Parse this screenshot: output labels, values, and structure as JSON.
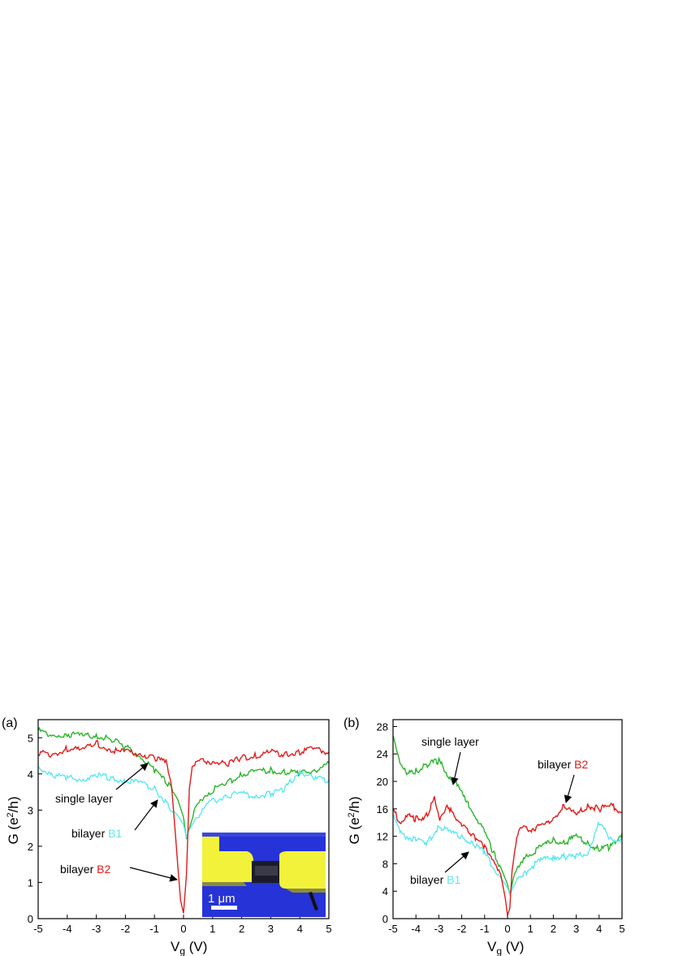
{
  "colors": {
    "single_layer": "#2bb52b",
    "bilayer_B1": "#5fe6f0",
    "bilayer_B2": "#e01b1b",
    "inset_bg": "#2633d6",
    "inset_contact": "#f2f23a"
  },
  "chart_data": [
    {
      "panel_label": "(a)",
      "type": "line",
      "xlabel_main": "V",
      "xlabel_sub": "g",
      "xlabel_unit": " (V)",
      "ylabel_main": "G (e",
      "ylabel_sup": "2",
      "ylabel_end": "/h)",
      "xlim": [
        -5,
        5
      ],
      "ylim": [
        0,
        5.5
      ],
      "xticks": [
        "-5",
        "-4",
        "-3",
        "-2",
        "-1",
        "0",
        "1",
        "2",
        "3",
        "4",
        "5"
      ],
      "yticks": [
        "0",
        "1",
        "2",
        "3",
        "4",
        "5"
      ],
      "series": [
        {
          "key": "single_layer",
          "x": [
            -5,
            -4.5,
            -4,
            -3.5,
            -3,
            -2.5,
            -2,
            -1.5,
            -1,
            -0.5,
            -0.2,
            0,
            0.1,
            0.2,
            0.4,
            0.7,
            1,
            1.5,
            2,
            2.5,
            3,
            3.5,
            4,
            4.5,
            5
          ],
          "y": [
            5.2,
            5.05,
            5.1,
            5.05,
            5.05,
            4.95,
            4.75,
            4.5,
            4.1,
            3.7,
            3.3,
            2.8,
            2.2,
            2.5,
            3.0,
            3.4,
            3.55,
            3.75,
            4.0,
            4.05,
            4.1,
            4.05,
            4.0,
            4.1,
            4.3
          ]
        },
        {
          "key": "bilayer_B1",
          "x": [
            -5,
            -4.5,
            -4,
            -3.5,
            -3,
            -2.5,
            -2,
            -1.5,
            -1,
            -0.5,
            -0.2,
            0,
            0.1,
            0.2,
            0.4,
            0.7,
            1,
            1.5,
            2,
            2.5,
            3,
            3.5,
            4,
            4.5,
            5
          ],
          "y": [
            4.2,
            3.95,
            3.9,
            3.85,
            3.95,
            3.9,
            3.8,
            3.75,
            3.6,
            3.1,
            2.85,
            2.6,
            2.25,
            2.45,
            2.75,
            3.05,
            3.25,
            3.4,
            3.45,
            3.4,
            3.45,
            3.6,
            4.1,
            3.85,
            3.85
          ]
        },
        {
          "key": "bilayer_B2",
          "x": [
            -5,
            -4.5,
            -4,
            -3.5,
            -3,
            -2.5,
            -2,
            -1.5,
            -1,
            -0.6,
            -0.4,
            -0.2,
            -0.1,
            0,
            0.1,
            0.2,
            0.3,
            0.5,
            1,
            1.5,
            2,
            2.5,
            3,
            3.5,
            4,
            4.5,
            5
          ],
          "y": [
            4.6,
            4.5,
            4.7,
            4.65,
            4.85,
            4.65,
            4.6,
            4.55,
            4.45,
            4.3,
            3.6,
            1.5,
            0.5,
            0.15,
            1.2,
            3.6,
            4.2,
            4.35,
            4.35,
            4.25,
            4.45,
            4.5,
            4.6,
            4.55,
            4.6,
            4.7,
            4.6
          ]
        }
      ],
      "annotations": [
        {
          "words": [
            "single layer"
          ],
          "series_key": null
        },
        {
          "words": [
            "bilayer ",
            "B1"
          ],
          "series_key": "bilayer_B1"
        },
        {
          "words": [
            "bilayer ",
            "B2"
          ],
          "series_key": "bilayer_B2"
        }
      ],
      "inset_scale_text": "1 μm"
    },
    {
      "panel_label": "(b)",
      "type": "line",
      "xlabel_main": "V",
      "xlabel_sub": "g",
      "xlabel_unit": " (V)",
      "ylabel_main": "G (e",
      "ylabel_sup": "2",
      "ylabel_end": "/h)",
      "xlim": [
        -5,
        5
      ],
      "ylim": [
        0,
        29
      ],
      "xticks": [
        "-5",
        "-4",
        "-3",
        "-2",
        "-1",
        "0",
        "1",
        "2",
        "3",
        "4",
        "5"
      ],
      "yticks": [
        "0",
        "4",
        "8",
        "12",
        "16",
        "20",
        "24",
        "28"
      ],
      "series": [
        {
          "key": "single_layer",
          "x": [
            -5,
            -4.7,
            -4.4,
            -4,
            -3.5,
            -3,
            -2.6,
            -2.2,
            -1.8,
            -1.4,
            -1,
            -0.6,
            -0.3,
            0,
            0.1,
            0.3,
            0.7,
            1,
            1.5,
            2,
            2.5,
            3,
            3.5,
            4,
            4.5,
            5
          ],
          "y": [
            26.5,
            23,
            21,
            21.5,
            22.5,
            23,
            21,
            19.5,
            17,
            15,
            12.5,
            9.5,
            7.5,
            5,
            3.5,
            6.5,
            8.5,
            9.5,
            10.5,
            11.5,
            11,
            12,
            11,
            10,
            10.5,
            12.5
          ]
        },
        {
          "key": "bilayer_B1",
          "x": [
            -5,
            -4.7,
            -4.4,
            -4,
            -3.5,
            -3,
            -2.5,
            -2,
            -1.5,
            -1,
            -0.6,
            -0.3,
            0,
            0.1,
            0.3,
            0.7,
            1,
            1.5,
            2,
            2.5,
            3,
            3.5,
            4,
            4.5,
            5
          ],
          "y": [
            15.5,
            12.5,
            12,
            11.5,
            11,
            13.5,
            12.5,
            12,
            11,
            9.5,
            7.5,
            6,
            4.5,
            3.5,
            5,
            6.5,
            7.5,
            8.5,
            9,
            9,
            9,
            9.5,
            14,
            11.5,
            11.5
          ]
        },
        {
          "key": "bilayer_B2",
          "x": [
            -5,
            -4.7,
            -4.4,
            -4,
            -3.5,
            -3.2,
            -3,
            -2.6,
            -2.2,
            -1.8,
            -1.4,
            -1,
            -0.6,
            -0.3,
            -0.1,
            0,
            0.1,
            0.2,
            0.4,
            0.7,
            1,
            1.5,
            2,
            2.5,
            3,
            3.5,
            4,
            4.5,
            5
          ],
          "y": [
            16,
            14,
            15,
            14.5,
            15,
            17.5,
            14.5,
            16.5,
            14,
            13.5,
            11.5,
            10.5,
            8.5,
            6.5,
            3,
            0.5,
            1.5,
            7,
            12,
            13.5,
            13,
            13.5,
            14.5,
            16.5,
            15,
            16.5,
            16,
            16.5,
            15.5
          ]
        }
      ],
      "annotations": [
        {
          "words": [
            "single layer"
          ],
          "series_key": null
        },
        {
          "words": [
            "bilayer ",
            "B2"
          ],
          "series_key": "bilayer_B2"
        },
        {
          "words": [
            "bilayer ",
            "B1"
          ],
          "series_key": "bilayer_B1"
        }
      ]
    }
  ]
}
